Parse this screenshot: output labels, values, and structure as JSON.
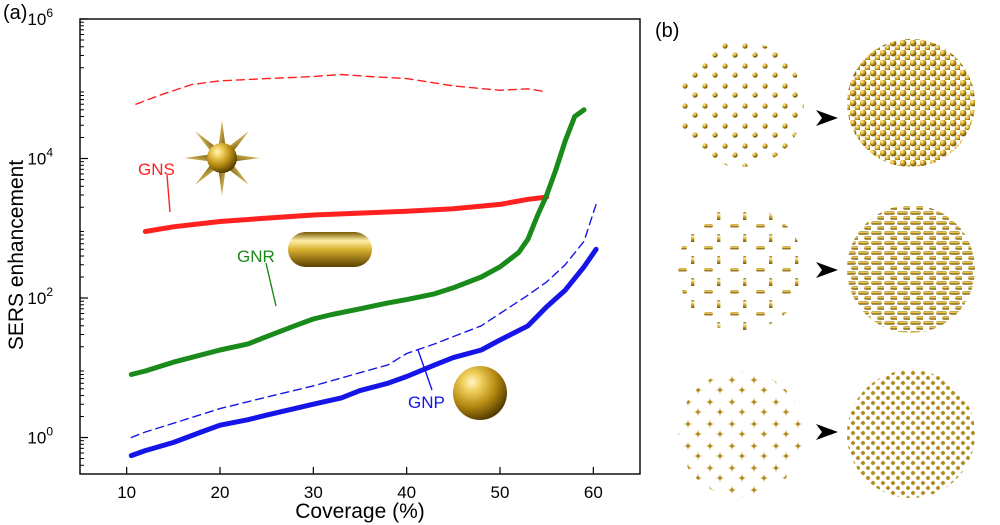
{
  "panel_a_label": "(a)",
  "panel_b_label": "(b)",
  "chart_data": {
    "type": "line",
    "title": "",
    "xlabel": "Coverage (%)",
    "ylabel": "SERS enhancement",
    "xlim": [
      5,
      65
    ],
    "ylim": [
      0.3,
      1000000
    ],
    "yscale": "log",
    "x_ticks": [
      10,
      20,
      30,
      40,
      50,
      60
    ],
    "x_tick_labels": [
      "10",
      "20",
      "30",
      "40",
      "50",
      "60"
    ],
    "y_ticks": [
      1,
      100,
      10000,
      1000000
    ],
    "y_tick_labels": [
      {
        "base": "10",
        "exp": "0"
      },
      {
        "base": "10",
        "exp": "2"
      },
      {
        "base": "10",
        "exp": "4"
      },
      {
        "base": "10",
        "exp": "6"
      }
    ],
    "grid": false,
    "legend": "none",
    "series": [
      {
        "id": "gns_solid",
        "color": "#ff2020",
        "style": "solid",
        "x": [
          12,
          15,
          20,
          25,
          30,
          35,
          40,
          45,
          50,
          53,
          55
        ],
        "y": [
          900,
          1050,
          1250,
          1400,
          1550,
          1650,
          1750,
          1900,
          2200,
          2600,
          2800
        ]
      },
      {
        "id": "gns_dashed",
        "color": "#ff2020",
        "style": "dashed",
        "x": [
          11,
          14,
          17,
          20,
          25,
          30,
          33,
          36,
          40,
          45,
          50,
          53,
          55
        ],
        "y": [
          60000,
          85000,
          115000,
          130000,
          140000,
          150000,
          160000,
          150000,
          140000,
          110000,
          95000,
          100000,
          90000
        ]
      },
      {
        "id": "gnr_solid",
        "color": "#1a8a1a",
        "style": "solid",
        "x": [
          10.5,
          12,
          15,
          20,
          23,
          25,
          28,
          30,
          32,
          35,
          38,
          40,
          43,
          45,
          48,
          50,
          52,
          53,
          54,
          55,
          56,
          57,
          58,
          59
        ],
        "y": [
          8,
          9,
          12,
          18,
          22,
          28,
          40,
          50,
          58,
          70,
          85,
          95,
          115,
          140,
          200,
          280,
          450,
          700,
          1500,
          3000,
          7000,
          18000,
          40000,
          50000
        ]
      },
      {
        "id": "gnp_solid",
        "color": "#1515e8",
        "style": "solid",
        "x": [
          10.5,
          12,
          15,
          18,
          20,
          23,
          25,
          28,
          30,
          33,
          35,
          38,
          40,
          43,
          45,
          48,
          50,
          53,
          55,
          57,
          59,
          60.3
        ],
        "y": [
          0.55,
          0.65,
          0.85,
          1.2,
          1.5,
          1.8,
          2.1,
          2.6,
          3.0,
          3.7,
          4.7,
          6.0,
          7.5,
          11,
          14,
          18,
          25,
          40,
          75,
          130,
          280,
          500
        ]
      },
      {
        "id": "gnp_dashed",
        "color": "#1515e8",
        "style": "dashed",
        "x": [
          10.5,
          12,
          15,
          20,
          25,
          30,
          35,
          38,
          40,
          43,
          45,
          48,
          50,
          53,
          55,
          57,
          59,
          60.3
        ],
        "y": [
          1.0,
          1.2,
          1.6,
          2.6,
          3.8,
          5.5,
          8.5,
          11,
          16,
          22,
          28,
          40,
          60,
          110,
          170,
          300,
          650,
          2200
        ]
      }
    ],
    "annotations": [
      {
        "text": "GNS",
        "color": "#ff2020"
      },
      {
        "text": "GNR",
        "color": "#1a8a1a"
      },
      {
        "text": "GNP",
        "color": "#1515e8"
      }
    ]
  }
}
